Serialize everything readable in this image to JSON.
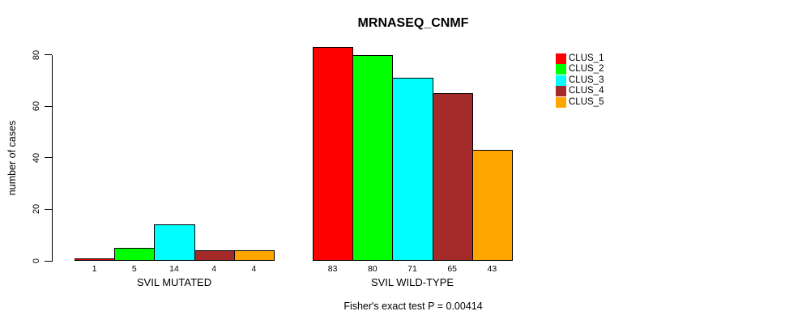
{
  "page": {
    "background": "#ffffff"
  },
  "footer": {
    "text": "Fisher's exact test P = 0.00414"
  },
  "chart_data": {
    "type": "bar",
    "title": "MRNASEQ_CNMF",
    "xlabel": "",
    "ylabel": "number of cases",
    "ylim": [
      0,
      80
    ],
    "yticks": [
      0,
      20,
      40,
      60,
      80
    ],
    "grid": false,
    "legend_position": "right",
    "series": [
      {
        "name": "CLUS_1",
        "color": "#ff0000"
      },
      {
        "name": "CLUS_2",
        "color": "#00ff00"
      },
      {
        "name": "CLUS_3",
        "color": "#00ffff"
      },
      {
        "name": "CLUS_4",
        "color": "#a52a2a"
      },
      {
        "name": "CLUS_5",
        "color": "#ffa500"
      }
    ],
    "groups": [
      {
        "label": "SVIL MUTATED",
        "values": [
          1,
          5,
          14,
          4,
          4
        ]
      },
      {
        "label": "SVIL WILD-TYPE",
        "values": [
          83,
          80,
          71,
          65,
          43
        ]
      }
    ],
    "bar_value_labels": true,
    "annotation": "Fisher's exact test P = 0.00414"
  }
}
